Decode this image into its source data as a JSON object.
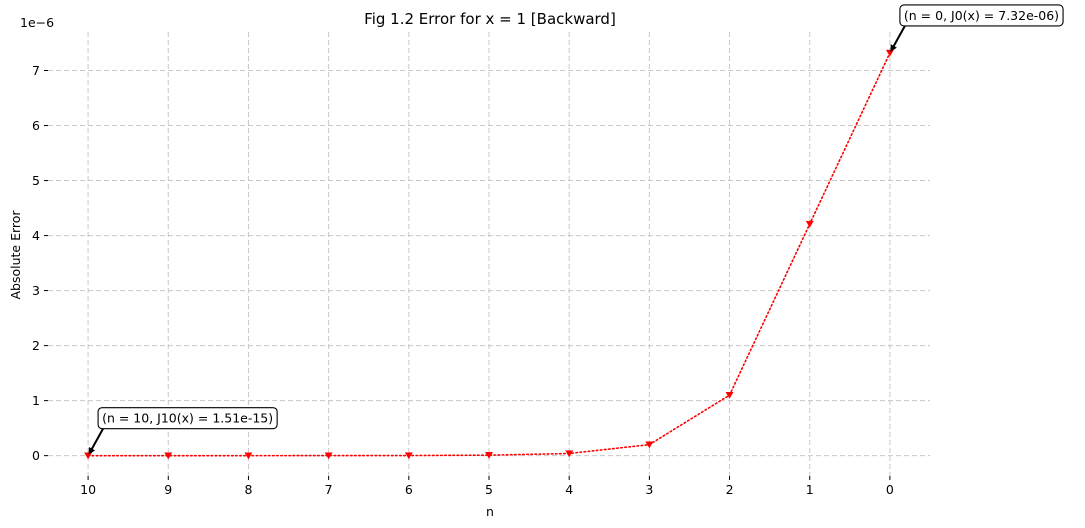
{
  "chart_data": {
    "type": "line",
    "title": "Fig 1.2 Error for x = 1 [Backward]",
    "xlabel": "n",
    "ylabel": "Absolute Error",
    "y_offset_label": "1e−6",
    "y_scale": 1e-06,
    "x": [
      10,
      9,
      8,
      7,
      6,
      5,
      4,
      3,
      2,
      1,
      0
    ],
    "x_inverted": true,
    "xlim": [
      10.5,
      -0.5
    ],
    "ylim": [
      -0.37,
      7.7
    ],
    "yticks": [
      0,
      1,
      2,
      3,
      4,
      5,
      6,
      7
    ],
    "grid": true,
    "series": [
      {
        "values": [
          1.51e-15,
          1e-11,
          1e-10,
          1e-09,
          2e-09,
          9e-09,
          3.9e-08,
          2e-07,
          1.1e-06,
          4.21e-06,
          7.32e-06
        ],
        "color": "#ff0000",
        "marker": "triangle-down",
        "linestyle": "dotted"
      }
    ],
    "annotations": [
      {
        "text": "(n = 10, J10(x) = 1.51e-15)",
        "x": 10,
        "y": 1.51e-15
      },
      {
        "text": "(n = 0, J0(x) = 7.32e-06)",
        "x": 0,
        "y": 7.32e-06
      }
    ]
  }
}
